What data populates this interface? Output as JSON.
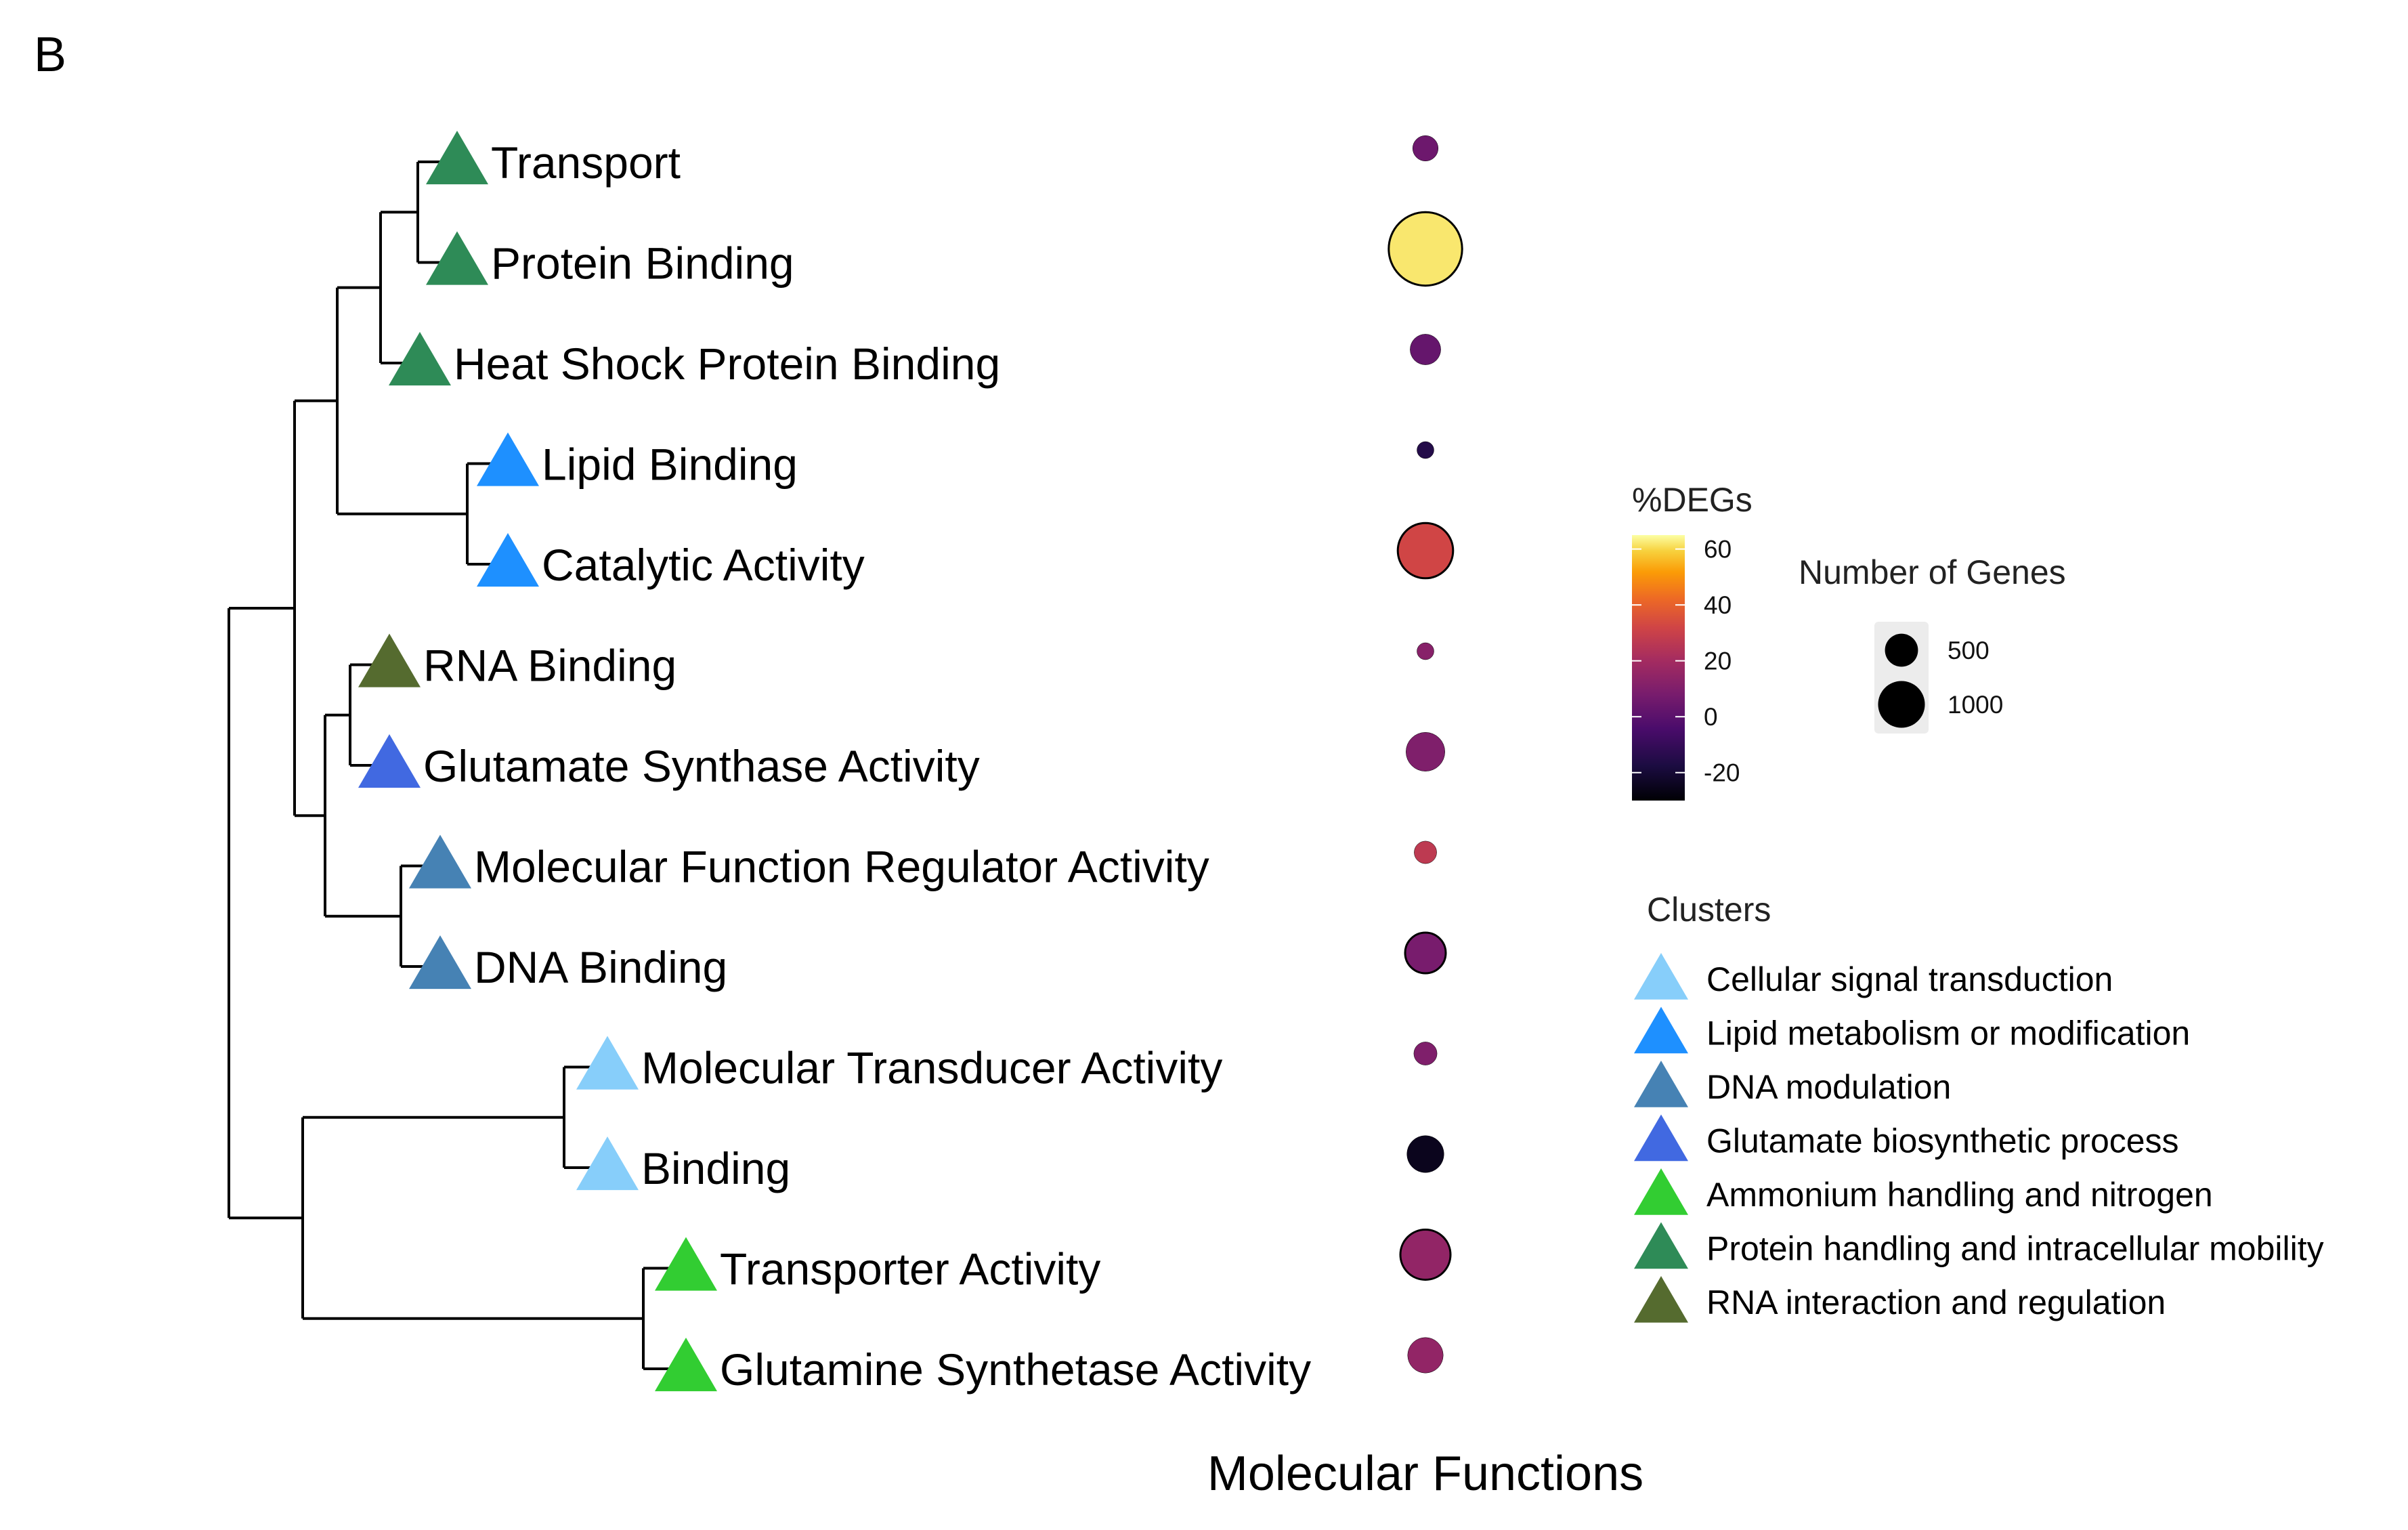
{
  "panel_label": "B",
  "chart_data": {
    "type": "scatter",
    "xlabel": "Molecular Functions",
    "leaves": [
      {
        "label": "Transport",
        "cluster": "Protein handling and intracellular mobility",
        "pct_degs": 5,
        "genes": 180
      },
      {
        "label": "Protein Binding",
        "cluster": "Protein handling and intracellular mobility",
        "pct_degs": 62,
        "genes": 1500
      },
      {
        "label": "Heat Shock Protein Binding",
        "cluster": "Protein handling and intracellular mobility",
        "pct_degs": 3,
        "genes": 260
      },
      {
        "label": "Lipid Binding",
        "cluster": "Lipid metabolism or modification",
        "pct_degs": -15,
        "genes": 80
      },
      {
        "label": "Catalytic Activity",
        "cluster": "Lipid metabolism or modification",
        "pct_degs": 32,
        "genes": 850
      },
      {
        "label": "RNA Binding",
        "cluster": "RNA interaction and regulation",
        "pct_degs": 12,
        "genes": 80
      },
      {
        "label": "Glutamate Synthase Activity",
        "cluster": "Glutamate biosynthetic process",
        "pct_degs": 10,
        "genes": 420
      },
      {
        "label": "Molecular Function Regulator Activity",
        "cluster": "DNA modulation",
        "pct_degs": 27,
        "genes": 140
      },
      {
        "label": "DNA Binding",
        "cluster": "DNA modulation",
        "pct_degs": 8,
        "genes": 460
      },
      {
        "label": "Molecular Transducer Activity",
        "cluster": "Cellular signal transduction",
        "pct_degs": 10,
        "genes": 150
      },
      {
        "label": "Binding",
        "cluster": "Cellular signal transduction",
        "pct_degs": -25,
        "genes": 380
      },
      {
        "label": "Transporter Activity",
        "cluster": "Ammonium handling and nitrogen",
        "pct_degs": 15,
        "genes": 700
      },
      {
        "label": "Glutamine Synthetase Activity",
        "cluster": "Ammonium handling and nitrogen",
        "pct_degs": 15,
        "genes": 350
      }
    ],
    "dendrogram": {
      "children": [
        {
          "children": [
            {
              "children": [
                {
                  "children": [
                    {
                      "children": [
                        {
                          "leaf": 0
                        },
                        {
                          "leaf": 1
                        }
                      ]
                    },
                    {
                      "leaf": 2
                    }
                  ]
                },
                {
                  "children": [
                    {
                      "leaf": 3
                    },
                    {
                      "leaf": 4
                    }
                  ]
                }
              ]
            },
            {
              "children": [
                {
                  "children": [
                    {
                      "leaf": 5
                    },
                    {
                      "leaf": 6
                    }
                  ]
                },
                {
                  "children": [
                    {
                      "leaf": 7
                    },
                    {
                      "leaf": 8
                    }
                  ]
                }
              ]
            }
          ]
        },
        {
          "children": [
            {
              "children": [
                {
                  "leaf": 9
                },
                {
                  "leaf": 10
                }
              ]
            },
            {
              "children": [
                {
                  "leaf": 11
                },
                {
                  "leaf": 12
                }
              ]
            }
          ]
        }
      ]
    },
    "color_legend": {
      "title": "%DEGs",
      "ticks": [
        60,
        40,
        20,
        0,
        -20
      ],
      "range": [
        -30,
        65
      ],
      "scale": "inferno"
    },
    "size_legend": {
      "title": "Number of Genes",
      "entries": [
        {
          "label": "500",
          "value": 500
        },
        {
          "label": "1000",
          "value": 1000
        }
      ]
    },
    "clusters": {
      "title": "Clusters",
      "items": [
        {
          "name": "Cellular signal transduction",
          "color": "#87CEFA"
        },
        {
          "name": "Lipid metabolism or modification",
          "color": "#1E90FF"
        },
        {
          "name": "DNA modulation",
          "color": "#4682B4"
        },
        {
          "name": "Glutamate biosynthetic process",
          "color": "#4169E1"
        },
        {
          "name": "Ammonium handling and nitrogen",
          "color": "#32CD32"
        },
        {
          "name": "Protein handling and intracellular mobility",
          "color": "#2E8B57"
        },
        {
          "name": "RNA interaction and regulation",
          "color": "#556B2F"
        }
      ]
    }
  }
}
